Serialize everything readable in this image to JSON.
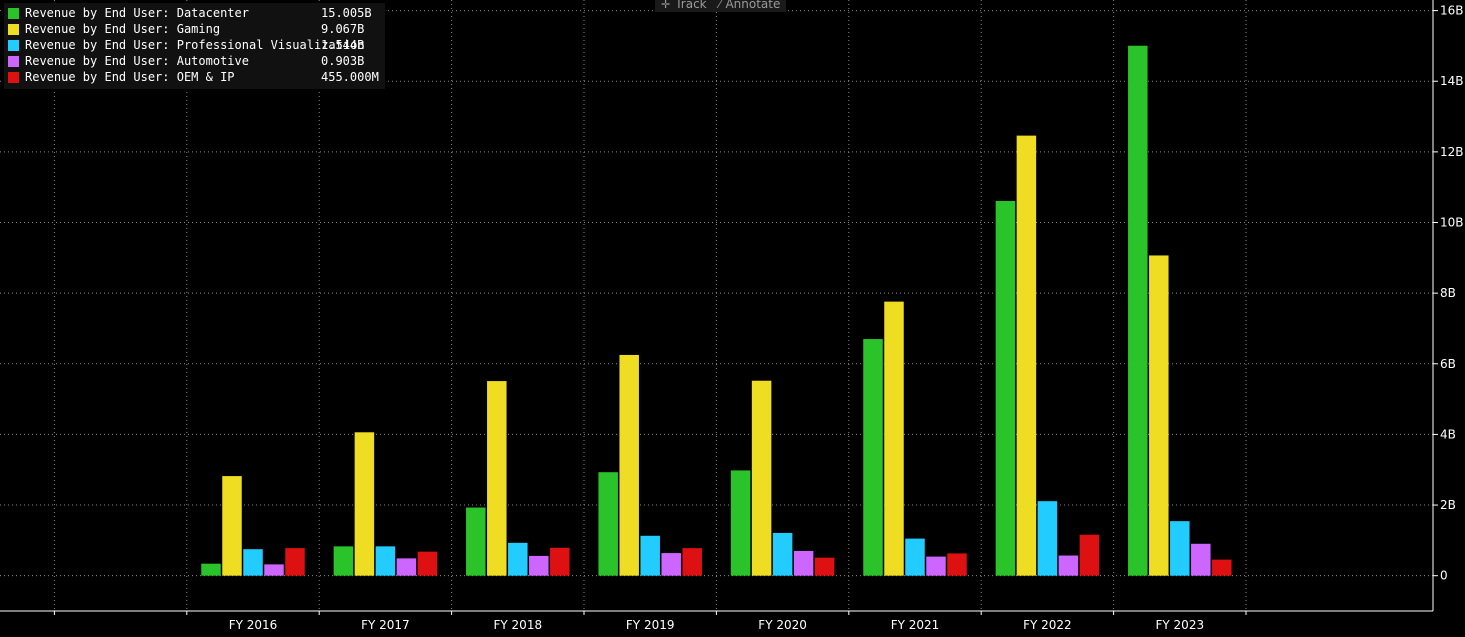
{
  "toolbar": {
    "track_label": "Track",
    "annotate_label": "Annotate"
  },
  "legend": {
    "items": [
      {
        "label": "Revenue by End User: Datacenter",
        "value": "15.005B",
        "color": "#2ac42a"
      },
      {
        "label": "Revenue by End User: Gaming",
        "value": "9.067B",
        "color": "#eedd22"
      },
      {
        "label": "Revenue by End User: Professional Visualization",
        "value": "1.544B",
        "color": "#22ccff"
      },
      {
        "label": "Revenue by End User: Automotive",
        "value": "0.903B",
        "color": "#cc66ff"
      },
      {
        "label": "Revenue by End User: OEM & IP",
        "value": "455.000M",
        "color": "#dd1111"
      }
    ]
  },
  "chart_data": {
    "type": "bar",
    "categories": [
      "FY 2016",
      "FY 2017",
      "FY 2018",
      "FY 2019",
      "FY 2020",
      "FY 2021",
      "FY 2022",
      "FY 2023"
    ],
    "series": [
      {
        "name": "Revenue by End User: Datacenter",
        "color": "#2ac42a",
        "values": [
          0.34,
          0.83,
          1.93,
          2.93,
          2.98,
          6.7,
          10.61,
          15.005
        ]
      },
      {
        "name": "Revenue by End User: Gaming",
        "color": "#eedd22",
        "values": [
          2.82,
          4.06,
          5.51,
          6.25,
          5.52,
          7.76,
          12.46,
          9.067
        ]
      },
      {
        "name": "Revenue by End User: Professional Visualization",
        "color": "#22ccff",
        "values": [
          0.75,
          0.83,
          0.93,
          1.13,
          1.21,
          1.05,
          2.11,
          1.544
        ]
      },
      {
        "name": "Revenue by End User: Automotive",
        "color": "#cc66ff",
        "values": [
          0.32,
          0.49,
          0.56,
          0.64,
          0.7,
          0.54,
          0.57,
          0.903
        ]
      },
      {
        "name": "Revenue by End User: OEM & IP",
        "color": "#dd1111",
        "values": [
          0.78,
          0.68,
          0.79,
          0.78,
          0.51,
          0.63,
          1.16,
          0.455
        ]
      }
    ],
    "yticks": [
      {
        "value": 0,
        "label": "0"
      },
      {
        "value": 2,
        "label": "2B"
      },
      {
        "value": 4,
        "label": "4B"
      },
      {
        "value": 6,
        "label": "6B"
      },
      {
        "value": 8,
        "label": "8B"
      },
      {
        "value": 10,
        "label": "10B"
      },
      {
        "value": 12,
        "label": "12B"
      },
      {
        "value": 14,
        "label": "14B"
      },
      {
        "value": 16,
        "label": "16B"
      }
    ],
    "ylim": [
      -1,
      16.3
    ],
    "yaxis_side": "right",
    "grid": true,
    "legend_position": "top-left"
  }
}
